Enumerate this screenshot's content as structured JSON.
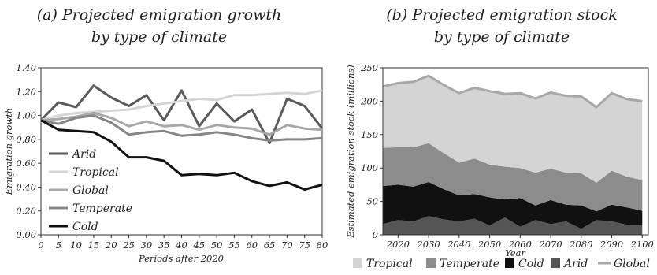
{
  "chart_data": [
    {
      "type": "line",
      "title_prefix": "(a)",
      "title_line1": "Projected emigration growth",
      "title_line2": "by type of climate",
      "xlabel": "Periods after 2020",
      "ylabel": "Emigration growth",
      "x": [
        0,
        5,
        10,
        15,
        20,
        25,
        30,
        35,
        40,
        45,
        50,
        55,
        60,
        65,
        70,
        75,
        80
      ],
      "x_ticks": [
        0,
        5,
        10,
        15,
        20,
        25,
        30,
        35,
        40,
        45,
        50,
        55,
        60,
        65,
        70,
        75,
        80
      ],
      "xlim": [
        0,
        80
      ],
      "ylim": [
        0,
        1.4
      ],
      "y_ticks": [
        "0.00",
        "0.20",
        "0.40",
        "0.60",
        "0.80",
        "1.00",
        "1.20",
        "1.40"
      ],
      "legend_position": "left",
      "series": [
        {
          "name": "Arid",
          "color": "#5a5a5a",
          "values": [
            0.96,
            1.11,
            1.07,
            1.25,
            1.15,
            1.08,
            1.17,
            0.96,
            1.21,
            0.91,
            1.1,
            0.95,
            1.05,
            0.77,
            1.14,
            1.08,
            0.89
          ]
        },
        {
          "name": "Tropical",
          "color": "#d4d4d4",
          "values": [
            0.96,
            1.0,
            1.02,
            1.03,
            1.04,
            1.05,
            1.08,
            1.1,
            1.12,
            1.14,
            1.13,
            1.17,
            1.17,
            1.18,
            1.19,
            1.18,
            1.21
          ]
        },
        {
          "name": "Global",
          "color": "#a8a8a8",
          "values": [
            0.96,
            0.97,
            0.99,
            1.02,
            0.98,
            0.91,
            0.95,
            0.91,
            0.92,
            0.88,
            0.92,
            0.9,
            0.89,
            0.84,
            0.92,
            0.89,
            0.88
          ]
        },
        {
          "name": "Temperate",
          "color": "#858585",
          "values": [
            0.96,
            0.93,
            0.98,
            1.0,
            0.94,
            0.84,
            0.86,
            0.87,
            0.83,
            0.84,
            0.86,
            0.84,
            0.81,
            0.79,
            0.8,
            0.8,
            0.81
          ]
        },
        {
          "name": "Cold",
          "color": "#111111",
          "values": [
            0.96,
            0.88,
            0.87,
            0.86,
            0.78,
            0.65,
            0.65,
            0.62,
            0.5,
            0.51,
            0.5,
            0.52,
            0.45,
            0.41,
            0.44,
            0.38,
            0.42
          ]
        }
      ]
    },
    {
      "type": "area",
      "stacked": true,
      "title_prefix": "(b)",
      "title_line1": "Projected emigration stock",
      "title_line2": "by type of climate",
      "xlabel": "Year",
      "ylabel": "Estimated emigration stock (millions)",
      "x": [
        2015,
        2020,
        2025,
        2030,
        2035,
        2040,
        2045,
        2050,
        2055,
        2060,
        2065,
        2070,
        2075,
        2080,
        2085,
        2090,
        2095,
        2100
      ],
      "x_ticks": [
        2020,
        2030,
        2040,
        2050,
        2060,
        2070,
        2080,
        2090,
        2100
      ],
      "xlim": [
        2015,
        2102
      ],
      "ylim": [
        0,
        250
      ],
      "y_ticks": [
        0,
        50,
        100,
        150,
        200,
        250
      ],
      "legend_position": "bottom",
      "series": [
        {
          "name": "Arid",
          "color": "#555555",
          "values": [
            16,
            22,
            20,
            28,
            23,
            20,
            24,
            14,
            26,
            12,
            22,
            16,
            20,
            9,
            22,
            20,
            15,
            14
          ]
        },
        {
          "name": "Cold",
          "color": "#111111",
          "values": [
            57,
            53,
            52,
            51,
            45,
            39,
            37,
            42,
            27,
            43,
            22,
            36,
            25,
            35,
            13,
            25,
            26,
            22
          ]
        },
        {
          "name": "Temperate",
          "color": "#8c8c8c",
          "values": [
            57,
            56,
            59,
            58,
            54,
            49,
            53,
            49,
            49,
            45,
            49,
            47,
            48,
            48,
            43,
            51,
            46,
            46
          ]
        },
        {
          "name": "Tropical",
          "color": "#d4d4d4",
          "values": [
            92,
            96,
            98,
            101,
            102,
            104,
            106,
            110,
            109,
            112,
            111,
            114,
            115,
            115,
            113,
            116,
            116,
            118
          ]
        }
      ],
      "global_line": {
        "name": "Global",
        "color": "#a8a8a8",
        "values": [
          222,
          227,
          229,
          238,
          224,
          212,
          220,
          215,
          211,
          212,
          204,
          213,
          208,
          207,
          191,
          212,
          203,
          200
        ]
      },
      "legend_order": [
        "Tropical",
        "Temperate",
        "Cold",
        "Arid",
        "Global"
      ]
    }
  ]
}
